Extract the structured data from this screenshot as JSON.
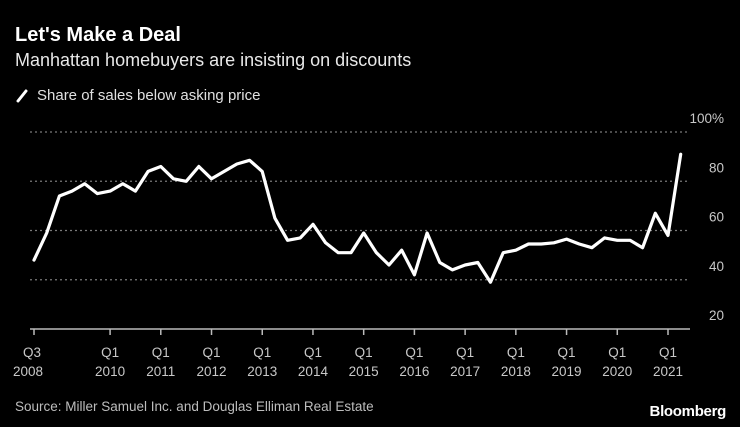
{
  "header": {
    "title": "Let's Make a Deal",
    "subtitle": "Manhattan homebuyers are insisting on discounts"
  },
  "footer": {
    "source": "Source: Miller Samuel Inc. and Douglas Elliman Real Estate",
    "brand": "Bloomberg"
  },
  "colors": {
    "background": "#000000",
    "line": "#ffffff",
    "grid": "#7a7a7a",
    "text": "#c8c8c8"
  },
  "chart_data": {
    "type": "line",
    "title": "Let's Make a Deal",
    "subtitle": "Manhattan homebuyers are insisting on discounts",
    "xlabel": "",
    "ylabel": "",
    "ylim": [
      20,
      100
    ],
    "y_ticks": [
      20,
      40,
      60,
      80,
      100
    ],
    "y_tick_labels": [
      "20",
      "40",
      "60",
      "80",
      "100%"
    ],
    "x_tick_labels": [
      {
        "index": 0,
        "top": "Q3",
        "bottom": "2008"
      },
      {
        "index": 6,
        "top": "Q1",
        "bottom": "2010"
      },
      {
        "index": 10,
        "top": "Q1",
        "bottom": "2011"
      },
      {
        "index": 14,
        "top": "Q1",
        "bottom": "2012"
      },
      {
        "index": 18,
        "top": "Q1",
        "bottom": "2013"
      },
      {
        "index": 22,
        "top": "Q1",
        "bottom": "2014"
      },
      {
        "index": 26,
        "top": "Q1",
        "bottom": "2015"
      },
      {
        "index": 30,
        "top": "Q1",
        "bottom": "2016"
      },
      {
        "index": 34,
        "top": "Q1",
        "bottom": "2017"
      },
      {
        "index": 38,
        "top": "Q1",
        "bottom": "2018"
      },
      {
        "index": 42,
        "top": "Q1",
        "bottom": "2019"
      },
      {
        "index": 46,
        "top": "Q1",
        "bottom": "2020"
      },
      {
        "index": 50,
        "top": "Q1",
        "bottom": "2021"
      }
    ],
    "grid": true,
    "legend_position": "top-left",
    "series": [
      {
        "name": "Share of sales below asking price",
        "x": [
          "Q3 2008",
          "Q4 2008",
          "Q1 2009",
          "Q2 2009",
          "Q3 2009",
          "Q4 2009",
          "Q1 2010",
          "Q2 2010",
          "Q3 2010",
          "Q4 2010",
          "Q1 2011",
          "Q2 2011",
          "Q3 2011",
          "Q4 2011",
          "Q1 2012",
          "Q2 2012",
          "Q3 2012",
          "Q4 2012",
          "Q1 2013",
          "Q2 2013",
          "Q3 2013",
          "Q4 2013",
          "Q1 2014",
          "Q2 2014",
          "Q3 2014",
          "Q4 2014",
          "Q1 2015",
          "Q2 2015",
          "Q3 2015",
          "Q4 2015",
          "Q1 2016",
          "Q2 2016",
          "Q3 2016",
          "Q4 2016",
          "Q1 2017",
          "Q2 2017",
          "Q3 2017",
          "Q4 2017",
          "Q1 2018",
          "Q2 2018",
          "Q3 2018",
          "Q4 2018",
          "Q1 2019",
          "Q2 2019",
          "Q3 2019",
          "Q4 2019",
          "Q1 2020",
          "Q2 2020",
          "Q3 2020",
          "Q4 2020",
          "Q1 2021",
          "Q2 2021"
        ],
        "values": [
          48,
          59,
          74,
          76,
          79,
          75,
          76,
          79,
          76,
          84,
          86,
          81,
          80,
          86,
          81,
          84,
          87,
          88.5,
          84,
          65,
          56,
          57,
          62.5,
          55,
          51,
          51,
          59,
          51,
          46,
          52,
          42,
          59,
          47,
          44,
          46,
          47,
          39,
          51,
          52,
          54.5,
          54.5,
          55,
          56.5,
          54.5,
          53,
          57,
          56,
          56,
          53,
          67,
          58,
          91
        ]
      }
    ]
  }
}
